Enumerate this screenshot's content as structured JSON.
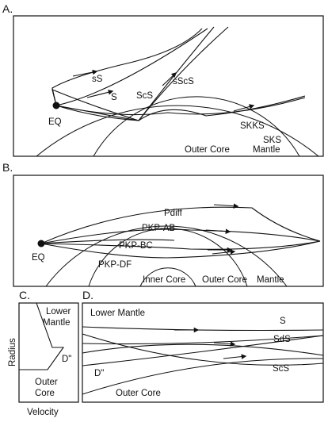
{
  "panelA": {
    "letter": "A.",
    "labels": {
      "sS": "sS",
      "S": "S",
      "ScS": "ScS",
      "sScS": "sScS",
      "SKKS": "SKKS",
      "SKS": "SKS",
      "EQ": "EQ",
      "outer_core": "Outer Core",
      "mantle": "Mantle"
    }
  },
  "panelB": {
    "letter": "B.",
    "labels": {
      "Pdiff": "Pdiff",
      "PKP_AB": "PKP-AB",
      "PKP_BC": "PKP-BC",
      "PKP_DF": "PKP-DF",
      "EQ": "EQ",
      "inner_core": "Inner Core",
      "outer_core": "Outer Core",
      "mantle": "Mantle"
    }
  },
  "panelC": {
    "letter": "C.",
    "labels": {
      "lower_mantle": [
        "Lower",
        "Mantle"
      ],
      "d_double_prime": "D\"",
      "outer_core": [
        "Outer",
        "Core"
      ],
      "y_axis": "Radius",
      "x_axis": "Velocity"
    }
  },
  "panelD": {
    "letter": "D.",
    "labels": {
      "lower_mantle": "Lower Mantle",
      "S": "S",
      "SdS": "SdS",
      "ScS": "ScS",
      "d_double_prime": "D\"",
      "outer_core": "Outer Core"
    }
  }
}
